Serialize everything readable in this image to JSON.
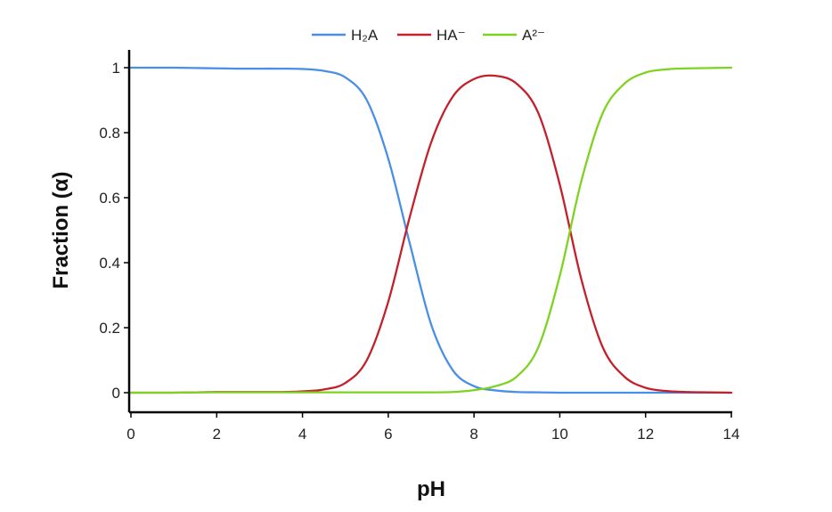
{
  "chart_data": {
    "type": "line",
    "title": "",
    "xlabel": "pH",
    "ylabel": "Fraction (α)",
    "xlim": [
      0,
      14
    ],
    "ylim": [
      0,
      1
    ],
    "xticks": [
      0,
      2,
      4,
      6,
      8,
      10,
      12,
      14
    ],
    "yticks": [
      0,
      0.2,
      0.4,
      0.6,
      0.8,
      1
    ],
    "ytick_labels": [
      "0",
      "0.2",
      "0.4",
      "0.6",
      "0.8",
      "1"
    ],
    "grid": false,
    "legend_position": "top-center",
    "x": [
      0,
      0.5,
      1,
      1.5,
      2,
      2.5,
      3,
      3.5,
      4,
      4.5,
      5,
      5.5,
      6,
      6.5,
      7,
      7.5,
      8,
      8.5,
      9,
      9.5,
      10,
      10.5,
      11,
      11.5,
      12,
      12.5,
      13,
      13.5,
      14
    ],
    "series": [
      {
        "name": "H₂A",
        "color": "#4a8fe7",
        "values": [
          1.0,
          1.0,
          1.0,
          0.999,
          0.998,
          0.997,
          0.997,
          0.997,
          0.996,
          0.99,
          0.97,
          0.9,
          0.72,
          0.46,
          0.21,
          0.07,
          0.02,
          0.007,
          0.002,
          0.001,
          0.0,
          0.0,
          0.0,
          0.0,
          0.0,
          0.0,
          0.0,
          0.0,
          0.0
        ]
      },
      {
        "name": "HA⁻",
        "color": "#c4202a",
        "values": [
          0.0,
          0.0,
          0.0,
          0.001,
          0.002,
          0.002,
          0.002,
          0.002,
          0.004,
          0.01,
          0.03,
          0.1,
          0.28,
          0.54,
          0.77,
          0.91,
          0.965,
          0.975,
          0.95,
          0.86,
          0.64,
          0.35,
          0.14,
          0.05,
          0.015,
          0.005,
          0.002,
          0.001,
          0.0
        ]
      },
      {
        "name": "A²⁻",
        "color": "#7ed321",
        "values": [
          0.0,
          0.0,
          0.0,
          0.001,
          0.001,
          0.001,
          0.001,
          0.001,
          0.001,
          0.001,
          0.001,
          0.001,
          0.001,
          0.001,
          0.001,
          0.002,
          0.008,
          0.02,
          0.05,
          0.14,
          0.36,
          0.65,
          0.86,
          0.95,
          0.985,
          0.995,
          0.998,
          0.999,
          1.0
        ]
      }
    ]
  }
}
